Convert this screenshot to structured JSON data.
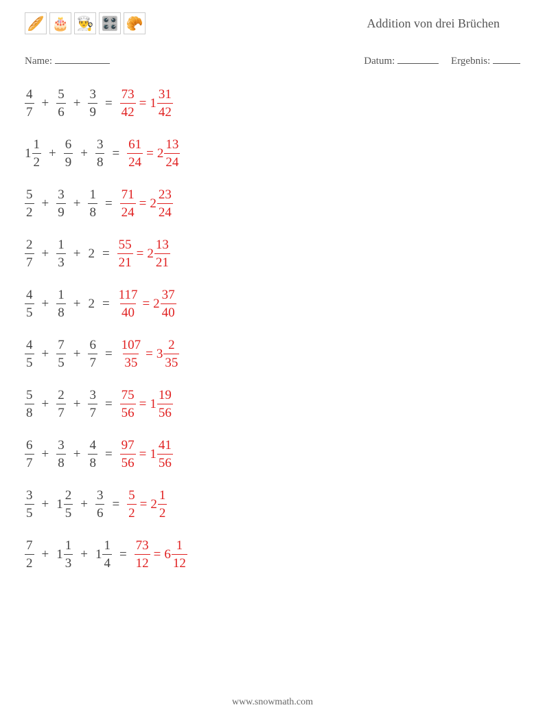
{
  "header": {
    "icons": [
      "🥖",
      "🎂",
      "👨‍🍳",
      "🎛️",
      "🥐"
    ],
    "title": "Addition von drei Brüchen"
  },
  "info": {
    "name_label": "Name:",
    "date_label": "Datum:",
    "result_label": "Ergebnis:"
  },
  "colors": {
    "text": "#444444",
    "answer": "#e02020",
    "border": "#cccccc",
    "background": "#ffffff"
  },
  "typography": {
    "title_fontsize": 18,
    "body_fontsize": 19,
    "info_fontsize": 15,
    "footer_fontsize": 14
  },
  "problems": [
    {
      "terms": [
        {
          "type": "frac",
          "num": "4",
          "den": "7"
        },
        {
          "type": "frac",
          "num": "5",
          "den": "6"
        },
        {
          "type": "frac",
          "num": "3",
          "den": "9"
        }
      ],
      "answer_frac": {
        "num": "73",
        "den": "42"
      },
      "answer_mixed": {
        "whole": "1",
        "num": "31",
        "den": "42"
      }
    },
    {
      "terms": [
        {
          "type": "mixed",
          "whole": "1",
          "num": "1",
          "den": "2"
        },
        {
          "type": "frac",
          "num": "6",
          "den": "9"
        },
        {
          "type": "frac",
          "num": "3",
          "den": "8"
        }
      ],
      "answer_frac": {
        "num": "61",
        "den": "24"
      },
      "answer_mixed": {
        "whole": "2",
        "num": "13",
        "den": "24"
      }
    },
    {
      "terms": [
        {
          "type": "frac",
          "num": "5",
          "den": "2"
        },
        {
          "type": "frac",
          "num": "3",
          "den": "9"
        },
        {
          "type": "frac",
          "num": "1",
          "den": "8"
        }
      ],
      "answer_frac": {
        "num": "71",
        "den": "24"
      },
      "answer_mixed": {
        "whole": "2",
        "num": "23",
        "den": "24"
      }
    },
    {
      "terms": [
        {
          "type": "frac",
          "num": "2",
          "den": "7"
        },
        {
          "type": "frac",
          "num": "1",
          "den": "3"
        },
        {
          "type": "whole",
          "value": "2"
        }
      ],
      "answer_frac": {
        "num": "55",
        "den": "21"
      },
      "answer_mixed": {
        "whole": "2",
        "num": "13",
        "den": "21"
      }
    },
    {
      "terms": [
        {
          "type": "frac",
          "num": "4",
          "den": "5"
        },
        {
          "type": "frac",
          "num": "1",
          "den": "8"
        },
        {
          "type": "whole",
          "value": "2"
        }
      ],
      "answer_frac": {
        "num": "117",
        "den": "40"
      },
      "answer_mixed": {
        "whole": "2",
        "num": "37",
        "den": "40"
      }
    },
    {
      "terms": [
        {
          "type": "frac",
          "num": "4",
          "den": "5"
        },
        {
          "type": "frac",
          "num": "7",
          "den": "5"
        },
        {
          "type": "frac",
          "num": "6",
          "den": "7"
        }
      ],
      "answer_frac": {
        "num": "107",
        "den": "35"
      },
      "answer_mixed": {
        "whole": "3",
        "num": "2",
        "den": "35"
      }
    },
    {
      "terms": [
        {
          "type": "frac",
          "num": "5",
          "den": "8"
        },
        {
          "type": "frac",
          "num": "2",
          "den": "7"
        },
        {
          "type": "frac",
          "num": "3",
          "den": "7"
        }
      ],
      "answer_frac": {
        "num": "75",
        "den": "56"
      },
      "answer_mixed": {
        "whole": "1",
        "num": "19",
        "den": "56"
      }
    },
    {
      "terms": [
        {
          "type": "frac",
          "num": "6",
          "den": "7"
        },
        {
          "type": "frac",
          "num": "3",
          "den": "8"
        },
        {
          "type": "frac",
          "num": "4",
          "den": "8"
        }
      ],
      "answer_frac": {
        "num": "97",
        "den": "56"
      },
      "answer_mixed": {
        "whole": "1",
        "num": "41",
        "den": "56"
      }
    },
    {
      "terms": [
        {
          "type": "frac",
          "num": "3",
          "den": "5"
        },
        {
          "type": "mixed",
          "whole": "1",
          "num": "2",
          "den": "5"
        },
        {
          "type": "frac",
          "num": "3",
          "den": "6"
        }
      ],
      "answer_frac": {
        "num": "5",
        "den": "2"
      },
      "answer_mixed": {
        "whole": "2",
        "num": "1",
        "den": "2"
      }
    },
    {
      "terms": [
        {
          "type": "frac",
          "num": "7",
          "den": "2"
        },
        {
          "type": "mixed",
          "whole": "1",
          "num": "1",
          "den": "3"
        },
        {
          "type": "mixed",
          "whole": "1",
          "num": "1",
          "den": "4"
        }
      ],
      "answer_frac": {
        "num": "73",
        "den": "12"
      },
      "answer_mixed": {
        "whole": "6",
        "num": "1",
        "den": "12"
      }
    }
  ],
  "footer": "www.snowmath.com"
}
